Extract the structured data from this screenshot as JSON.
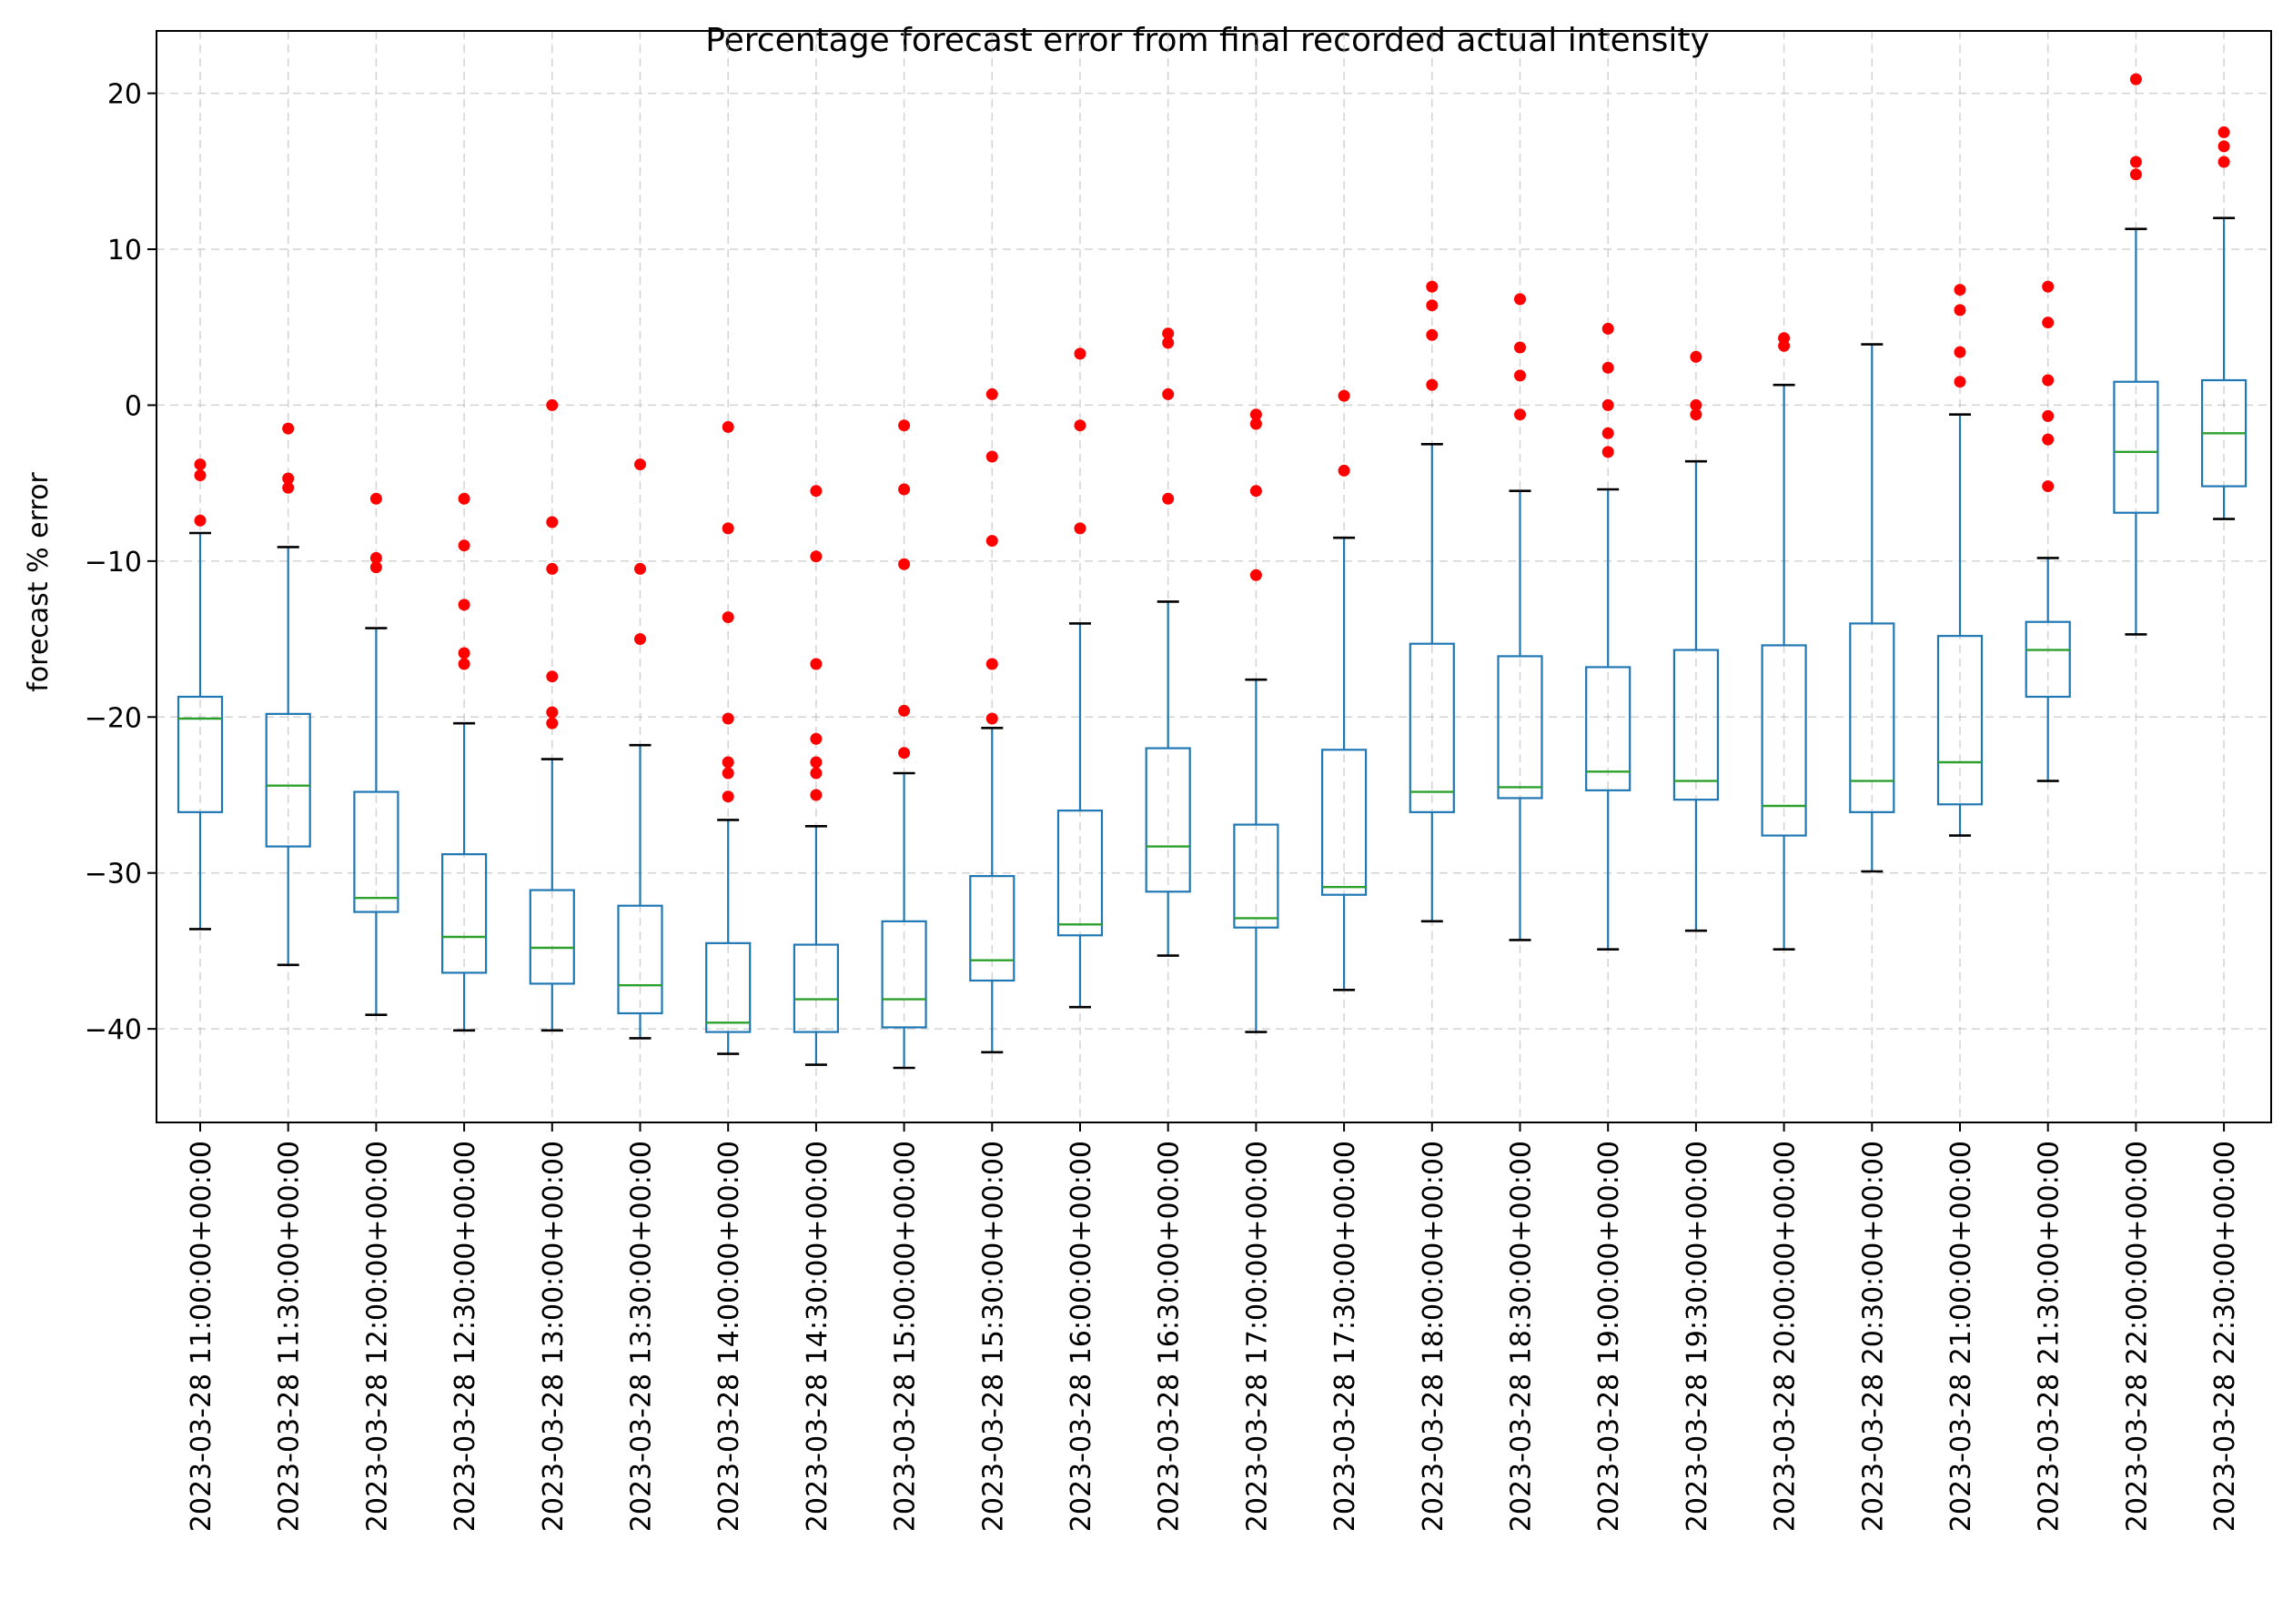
{
  "chart_data": {
    "type": "box",
    "title": "Percentage forecast error from final recorded actual intensity",
    "xlabel": "",
    "ylabel": "forecast % error",
    "ylim": [
      -46,
      24
    ],
    "yticks": [
      -40,
      -30,
      -20,
      -10,
      0,
      10,
      20
    ],
    "grid": true,
    "colors": {
      "box": "#1f77b4",
      "median": "#2ca02c",
      "whisker_cap": "#000000",
      "outlier": "#ff0000"
    },
    "categories": [
      "2023-03-28 11:00:00+00:00",
      "2023-03-28 11:30:00+00:00",
      "2023-03-28 12:00:00+00:00",
      "2023-03-28 12:30:00+00:00",
      "2023-03-28 13:00:00+00:00",
      "2023-03-28 13:30:00+00:00",
      "2023-03-28 14:00:00+00:00",
      "2023-03-28 14:30:00+00:00",
      "2023-03-28 15:00:00+00:00",
      "2023-03-28 15:30:00+00:00",
      "2023-03-28 16:00:00+00:00",
      "2023-03-28 16:30:00+00:00",
      "2023-03-28 17:00:00+00:00",
      "2023-03-28 17:30:00+00:00",
      "2023-03-28 18:00:00+00:00",
      "2023-03-28 18:30:00+00:00",
      "2023-03-28 19:00:00+00:00",
      "2023-03-28 19:30:00+00:00",
      "2023-03-28 20:00:00+00:00",
      "2023-03-28 20:30:00+00:00",
      "2023-03-28 21:00:00+00:00",
      "2023-03-28 21:30:00+00:00",
      "2023-03-28 22:00:00+00:00",
      "2023-03-28 22:30:00+00:00"
    ],
    "boxes": [
      {
        "whislo": -33.6,
        "q1": -26.1,
        "med": -20.1,
        "q3": -18.7,
        "whishi": -8.2,
        "fliers": [
          -3.8,
          -4.5,
          -7.4
        ]
      },
      {
        "whislo": -35.9,
        "q1": -28.3,
        "med": -24.4,
        "q3": -19.8,
        "whishi": -9.1,
        "fliers": [
          -1.5,
          -4.7,
          -5.3
        ]
      },
      {
        "whislo": -39.1,
        "q1": -32.5,
        "med": -31.6,
        "q3": -24.8,
        "whishi": -14.3,
        "fliers": [
          -6.0,
          -9.8,
          -10.4
        ]
      },
      {
        "whislo": -40.1,
        "q1": -36.4,
        "med": -34.1,
        "q3": -28.8,
        "whishi": -20.4,
        "fliers": [
          -6.0,
          -9.0,
          -12.8,
          -15.9,
          -16.6
        ]
      },
      {
        "whislo": -40.1,
        "q1": -37.1,
        "med": -34.8,
        "q3": -31.1,
        "whishi": -22.7,
        "fliers": [
          0.0,
          -7.5,
          -10.5,
          -17.4,
          -19.7,
          -20.4
        ]
      },
      {
        "whislo": -40.6,
        "q1": -39.0,
        "med": -37.2,
        "q3": -32.1,
        "whishi": -21.8,
        "fliers": [
          -3.8,
          -10.5,
          -15.0
        ]
      },
      {
        "whislo": -41.6,
        "q1": -40.2,
        "med": -39.6,
        "q3": -34.5,
        "whishi": -26.6,
        "fliers": [
          -1.4,
          -7.9,
          -13.6,
          -20.1,
          -22.9,
          -23.6,
          -25.1
        ]
      },
      {
        "whislo": -42.3,
        "q1": -40.2,
        "med": -38.1,
        "q3": -34.6,
        "whishi": -27.0,
        "fliers": [
          -5.5,
          -9.7,
          -16.6,
          -21.4,
          -22.9,
          -23.6,
          -25.0
        ]
      },
      {
        "whislo": -42.5,
        "q1": -39.9,
        "med": -38.1,
        "q3": -33.1,
        "whishi": -23.6,
        "fliers": [
          -1.3,
          -5.4,
          -10.2,
          -19.6,
          -22.3
        ]
      },
      {
        "whislo": -41.5,
        "q1": -36.9,
        "med": -35.6,
        "q3": -30.2,
        "whishi": -20.7,
        "fliers": [
          0.7,
          -3.3,
          -8.7,
          -16.6,
          -20.1
        ]
      },
      {
        "whislo": -38.6,
        "q1": -34.0,
        "med": -33.3,
        "q3": -26.0,
        "whishi": -14.0,
        "fliers": [
          3.3,
          -1.3,
          -7.9
        ]
      },
      {
        "whislo": -35.3,
        "q1": -31.2,
        "med": -28.3,
        "q3": -22.0,
        "whishi": -12.6,
        "fliers": [
          4.6,
          4.0,
          0.7,
          -6.0
        ]
      },
      {
        "whislo": -40.2,
        "q1": -33.5,
        "med": -32.9,
        "q3": -26.9,
        "whishi": -17.6,
        "fliers": [
          -0.6,
          -1.2,
          -5.5,
          -10.9
        ]
      },
      {
        "whislo": -37.5,
        "q1": -31.4,
        "med": -30.9,
        "q3": -22.1,
        "whishi": -8.5,
        "fliers": [
          0.6,
          -4.2
        ]
      },
      {
        "whislo": -33.1,
        "q1": -26.1,
        "med": -24.8,
        "q3": -15.3,
        "whishi": -2.5,
        "fliers": [
          7.6,
          6.4,
          4.5,
          1.3
        ]
      },
      {
        "whislo": -34.3,
        "q1": -25.2,
        "med": -24.5,
        "q3": -16.1,
        "whishi": -5.5,
        "fliers": [
          6.8,
          3.7,
          1.9,
          -0.6
        ]
      },
      {
        "whislo": -34.9,
        "q1": -24.7,
        "med": -23.5,
        "q3": -16.8,
        "whishi": -5.4,
        "fliers": [
          4.9,
          2.4,
          0.0,
          -1.8,
          -3.0
        ]
      },
      {
        "whislo": -33.7,
        "q1": -25.3,
        "med": -24.1,
        "q3": -15.7,
        "whishi": -3.6,
        "fliers": [
          3.1,
          0.0,
          -0.6
        ]
      },
      {
        "whislo": -34.9,
        "q1": -27.6,
        "med": -25.7,
        "q3": -15.4,
        "whishi": 1.3,
        "fliers": [
          4.3,
          3.8
        ]
      },
      {
        "whislo": -29.9,
        "q1": -26.1,
        "med": -24.1,
        "q3": -14.0,
        "whishi": 3.9,
        "fliers": []
      },
      {
        "whislo": -27.6,
        "q1": -25.6,
        "med": -22.9,
        "q3": -14.8,
        "whishi": -0.6,
        "fliers": [
          7.4,
          6.1,
          3.4,
          1.5
        ]
      },
      {
        "whislo": -24.1,
        "q1": -18.7,
        "med": -15.7,
        "q3": -13.9,
        "whishi": -9.8,
        "fliers": [
          7.6,
          5.3,
          1.6,
          -0.7,
          -2.2,
          -5.2
        ]
      },
      {
        "whislo": -14.7,
        "q1": -6.9,
        "med": -3.0,
        "q3": 1.5,
        "whishi": 11.3,
        "fliers": [
          20.9,
          15.6,
          14.8
        ]
      },
      {
        "whislo": -7.3,
        "q1": -5.2,
        "med": -1.8,
        "q3": 1.6,
        "whishi": 12.0,
        "fliers": [
          17.5,
          16.6,
          15.6
        ]
      }
    ]
  }
}
